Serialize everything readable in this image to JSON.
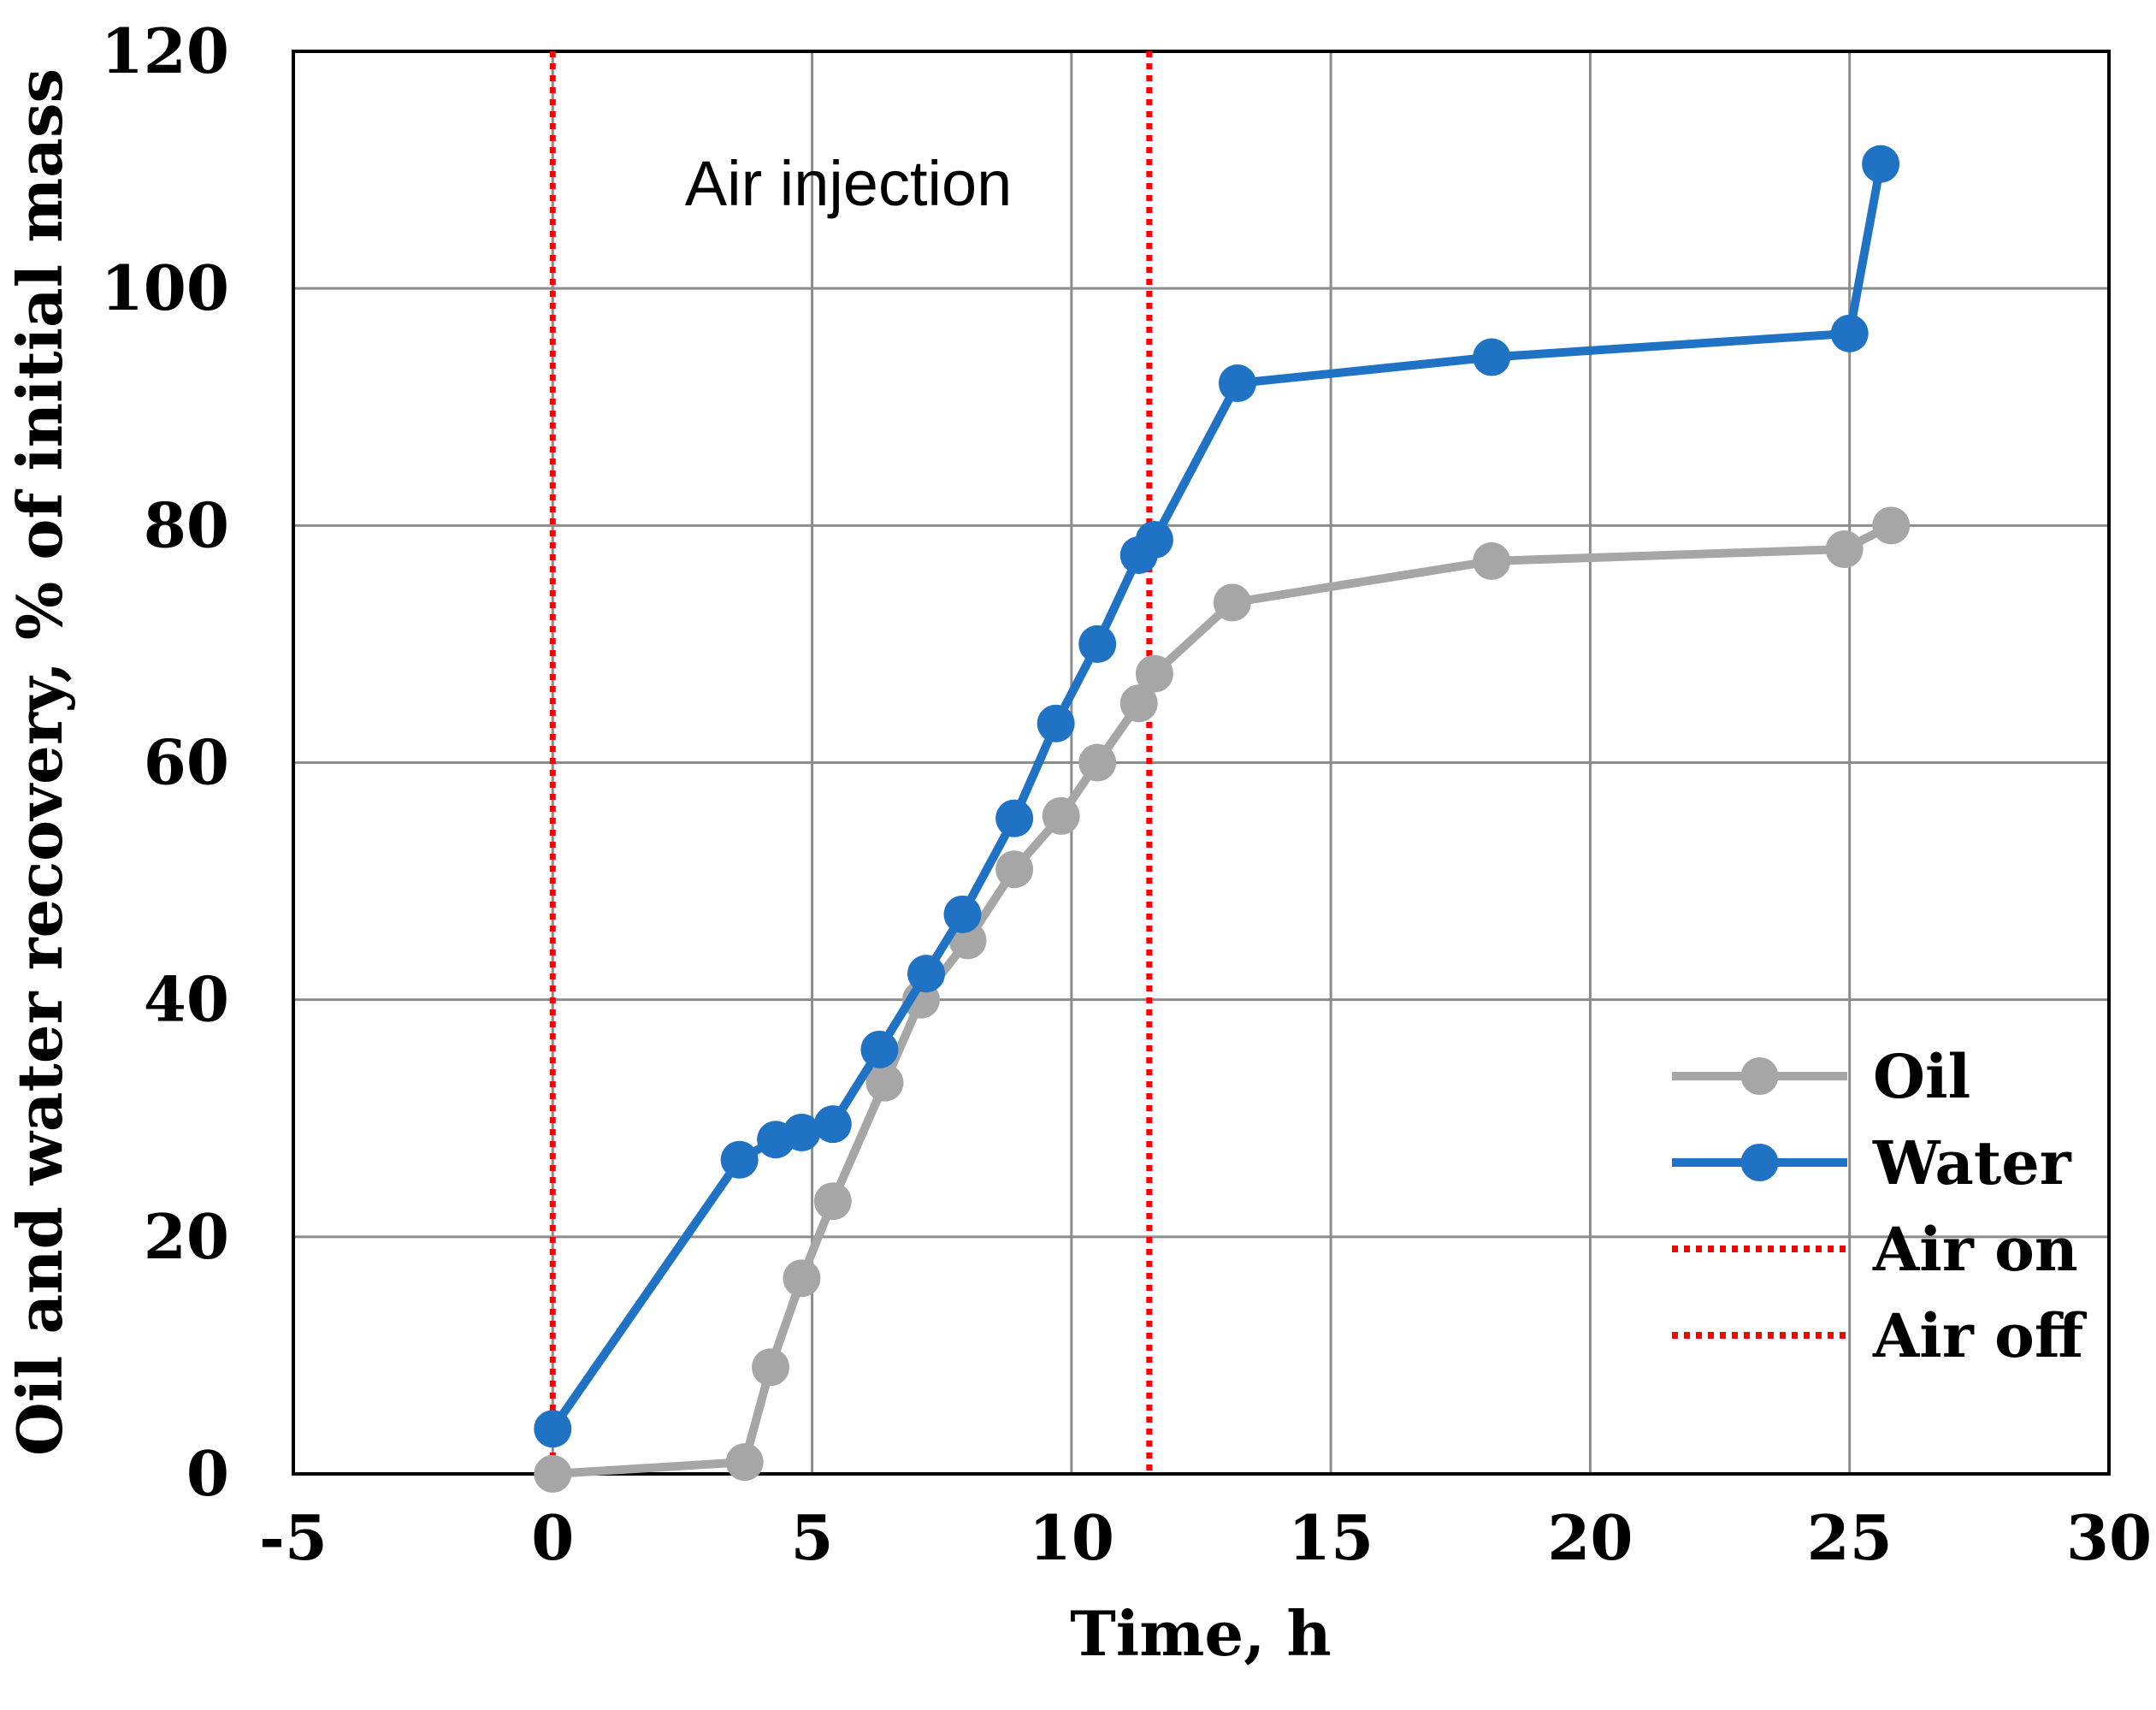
{
  "chart_data": {
    "type": "line",
    "title": "",
    "xlabel": "Time, h",
    "ylabel": "Oil and water recovery, % of initial mass",
    "xlim": [
      -5,
      30
    ],
    "ylim": [
      0,
      120
    ],
    "x_ticks": [
      -5,
      0,
      5,
      10,
      15,
      20,
      25,
      30
    ],
    "y_ticks": [
      0,
      20,
      40,
      60,
      80,
      100,
      120
    ],
    "x_tick_labels": [
      "-5",
      "0",
      "5",
      "10",
      "15",
      "20",
      "25",
      "30"
    ],
    "y_tick_labels": [
      "0",
      "20",
      "40",
      "60",
      "80",
      "100",
      "120"
    ],
    "grid": true,
    "legend_position": "right",
    "annotation": {
      "text": "Air injection",
      "x": 5.7,
      "y": 107
    },
    "series": [
      {
        "name": "Oil",
        "color": "#a6a6a6",
        "marker": "circle",
        "points": [
          [
            0,
            0
          ],
          [
            3.7,
            1
          ],
          [
            4.2,
            9
          ],
          [
            4.8,
            16.5
          ],
          [
            5.4,
            23
          ],
          [
            6.4,
            33
          ],
          [
            7.1,
            40
          ],
          [
            8,
            45
          ],
          [
            8.9,
            51
          ],
          [
            9.8,
            55.5
          ],
          [
            10.5,
            60
          ],
          [
            11.3,
            65
          ],
          [
            11.6,
            67.5
          ],
          [
            13.1,
            73.5
          ],
          [
            18.1,
            77
          ],
          [
            24.9,
            78
          ],
          [
            25.8,
            80
          ]
        ]
      },
      {
        "name": "Water",
        "color": "#1f72c4",
        "marker": "circle",
        "points": [
          [
            0,
            3.8
          ],
          [
            3.6,
            26.5
          ],
          [
            4.3,
            28.2
          ],
          [
            4.8,
            28.8
          ],
          [
            5.4,
            29.5
          ],
          [
            6.3,
            35.8
          ],
          [
            7.2,
            42.2
          ],
          [
            7.9,
            47.2
          ],
          [
            8.9,
            55.3
          ],
          [
            9.7,
            63.3
          ],
          [
            10.5,
            70
          ],
          [
            11.3,
            77.5
          ],
          [
            11.6,
            78.8
          ],
          [
            13.2,
            92
          ],
          [
            18.1,
            94.2
          ],
          [
            25,
            96.2
          ],
          [
            25.6,
            110.5
          ]
        ]
      },
      {
        "name": "Air on",
        "color": "#ff0000",
        "style": "dotted",
        "x": 0
      },
      {
        "name": "Air off",
        "color": "#ff0000",
        "style": "dotted",
        "x": 11.5
      }
    ]
  }
}
